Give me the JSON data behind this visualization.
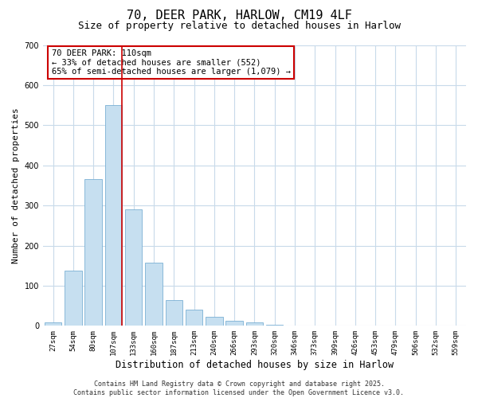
{
  "title": "70, DEER PARK, HARLOW, CM19 4LF",
  "subtitle": "Size of property relative to detached houses in Harlow",
  "xlabel": "Distribution of detached houses by size in Harlow",
  "ylabel": "Number of detached properties",
  "categories": [
    "27sqm",
    "54sqm",
    "80sqm",
    "107sqm",
    "133sqm",
    "160sqm",
    "187sqm",
    "213sqm",
    "240sqm",
    "266sqm",
    "293sqm",
    "320sqm",
    "346sqm",
    "373sqm",
    "399sqm",
    "426sqm",
    "453sqm",
    "479sqm",
    "506sqm",
    "532sqm",
    "559sqm"
  ],
  "values": [
    8,
    138,
    365,
    550,
    290,
    157,
    65,
    40,
    23,
    13,
    8,
    2,
    0,
    0,
    0,
    0,
    0,
    0,
    0,
    0,
    0
  ],
  "bar_color": "#c6dff0",
  "bar_edge_color": "#7ab0d4",
  "highlight_bar_index": 3,
  "highlight_line_color": "#cc0000",
  "annotation_title": "70 DEER PARK: 110sqm",
  "annotation_line1": "← 33% of detached houses are smaller (552)",
  "annotation_line2": "65% of semi-detached houses are larger (1,079) →",
  "annotation_box_color": "#ffffff",
  "annotation_box_edge": "#cc0000",
  "ylim": [
    0,
    700
  ],
  "yticks": [
    0,
    100,
    200,
    300,
    400,
    500,
    600,
    700
  ],
  "background_color": "#ffffff",
  "grid_color": "#c8daea",
  "footer_line1": "Contains HM Land Registry data © Crown copyright and database right 2025.",
  "footer_line2": "Contains public sector information licensed under the Open Government Licence v3.0.",
  "title_fontsize": 11,
  "subtitle_fontsize": 9,
  "tick_fontsize": 6.5,
  "xlabel_fontsize": 8.5,
  "ylabel_fontsize": 8,
  "annotation_fontsize": 7.5,
  "footer_fontsize": 6
}
